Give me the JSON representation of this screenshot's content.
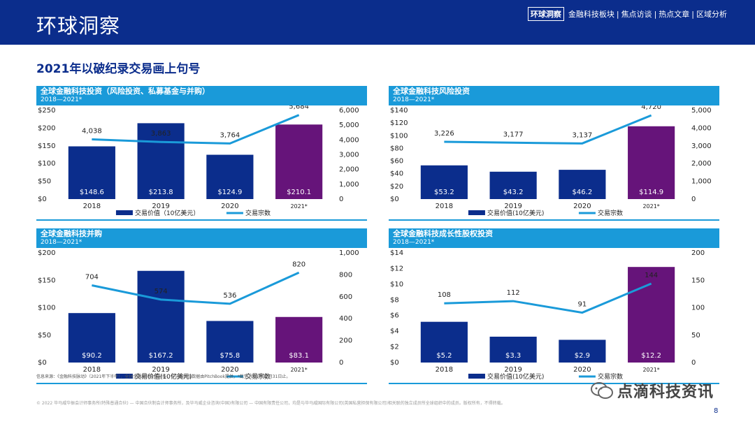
{
  "header": {
    "title": "环球洞察",
    "nav_active": "环球洞察",
    "nav_items": [
      "金融科技板块",
      "焦点访谈",
      "热点文章",
      "区域分析"
    ],
    "nav_sep": "|"
  },
  "subtitle": "2021年以破纪录交易画上句号",
  "footnote": "信息来源：《金融科技脉动》（2021年下半年），全球金融科技投资分析，毕马威国际数据由PitchBook提供，*截至2021年12月31日止。",
  "copyright": "© 2022 毕马威华振会计师事务所(特殊普通合伙) — 中国合伙制会计师事务所，及毕马威企业咨询(中国)有限公司 — 中国有限责任公司，均是与毕马威国际有限公司(英国私营担保有限公司)相关联的独立成员所全球组织中的成员。版权所有，不得转载。",
  "page_number": "8",
  "watermark": "点滴科技资讯",
  "colors": {
    "blue": "#0b2d8c",
    "purple": "#66147a",
    "line": "#1a9ad9",
    "header": "#0b2d8c"
  },
  "chart_data": [
    {
      "type": "bar",
      "title": "全球金融科技投资（风险投资、私募基金与并购）",
      "range": "2018—2021*",
      "categories": [
        "2018",
        "2019",
        "2020",
        "2021*"
      ],
      "series": [
        {
          "name": "交易价值（10亿美元）",
          "type": "bar",
          "axis": "left",
          "values": [
            148.6,
            213.8,
            124.9,
            210.1
          ],
          "labels": [
            "$148.6",
            "$213.8",
            "$124.9",
            "$210.1"
          ]
        },
        {
          "name": "交易宗数",
          "type": "line",
          "axis": "right",
          "values": [
            4038,
            3863,
            3764,
            5684
          ],
          "labels": [
            "4,038",
            "3,863",
            "3,764",
            "5,684"
          ]
        }
      ],
      "y_left": {
        "min": 0,
        "max": 250,
        "ticks": [
          "$0",
          "$50",
          "$100",
          "$150",
          "$200",
          "$250"
        ]
      },
      "y_right": {
        "min": 0,
        "max": 6000,
        "ticks": [
          "0",
          "1,000",
          "2,000",
          "3,000",
          "4,000",
          "5,000",
          "6,000"
        ]
      },
      "legend": "bottom"
    },
    {
      "type": "bar",
      "title": "全球金融科技风险投资",
      "range": "2018—2021*",
      "categories": [
        "2018",
        "2019",
        "2020",
        "2021*"
      ],
      "series": [
        {
          "name": "交易价值(10亿美元)",
          "type": "bar",
          "axis": "left",
          "values": [
            53.2,
            43.2,
            46.2,
            114.9
          ],
          "labels": [
            "$53.2",
            "$43.2",
            "$46.2",
            "$114.9"
          ]
        },
        {
          "name": "交易宗数",
          "type": "line",
          "axis": "right",
          "values": [
            3226,
            3177,
            3137,
            4720
          ],
          "labels": [
            "3,226",
            "3,177",
            "3,137",
            "4,720"
          ]
        }
      ],
      "y_left": {
        "min": 0,
        "max": 140,
        "ticks": [
          "$0",
          "$20",
          "$40",
          "$60",
          "$80",
          "$100",
          "$120",
          "$140"
        ]
      },
      "y_right": {
        "min": 0,
        "max": 5000,
        "ticks": [
          "0",
          "1,000",
          "2,000",
          "3,000",
          "4,000",
          "5,000"
        ]
      },
      "legend": "bottom"
    },
    {
      "type": "bar",
      "title": "全球金融科技并购",
      "range": "2018—2021*",
      "categories": [
        "2018",
        "2019",
        "2020",
        "2021*"
      ],
      "series": [
        {
          "name": "交易价值(10亿美元)",
          "type": "bar",
          "axis": "left",
          "values": [
            90.2,
            167.2,
            75.8,
            83.1
          ],
          "labels": [
            "$90.2",
            "$167.2",
            "$75.8",
            "$83.1"
          ]
        },
        {
          "name": "交易宗数",
          "type": "line",
          "axis": "right",
          "values": [
            704,
            574,
            536,
            820
          ],
          "labels": [
            "704",
            "574",
            "536",
            "820"
          ]
        }
      ],
      "y_left": {
        "min": 0,
        "max": 200,
        "ticks": [
          "$0",
          "$50",
          "$100",
          "$150",
          "$200"
        ]
      },
      "y_right": {
        "min": 0,
        "max": 1000,
        "ticks": [
          "0",
          "200",
          "400",
          "600",
          "800",
          "1,000"
        ]
      },
      "legend": "bottom"
    },
    {
      "type": "bar",
      "title": "全球金融科技成长性股权投资",
      "range": "2018—2021*",
      "categories": [
        "2018",
        "2019",
        "2020",
        "2021*"
      ],
      "series": [
        {
          "name": "交易价值(10亿美元)",
          "type": "bar",
          "axis": "left",
          "values": [
            5.2,
            3.3,
            2.9,
            12.2
          ],
          "labels": [
            "$5.2",
            "$3.3",
            "$2.9",
            "$12.2"
          ]
        },
        {
          "name": "交易宗数",
          "type": "line",
          "axis": "right",
          "values": [
            108,
            112,
            91,
            144
          ],
          "labels": [
            "108",
            "112",
            "91",
            "144"
          ]
        }
      ],
      "y_left": {
        "min": 0,
        "max": 14,
        "ticks": [
          "$0",
          "$2",
          "$4",
          "$6",
          "$8",
          "$10",
          "$12",
          "$14"
        ]
      },
      "y_right": {
        "min": 0,
        "max": 200,
        "ticks": [
          "0",
          "50",
          "100",
          "150",
          "200"
        ]
      },
      "legend": "bottom"
    }
  ]
}
